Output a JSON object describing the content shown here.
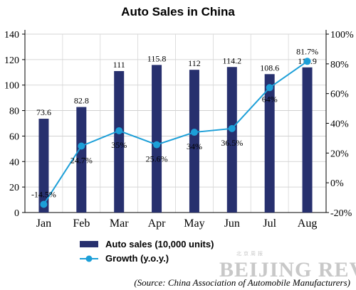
{
  "chart_data": {
    "type": "bar",
    "title": "Auto Sales in China",
    "categories": [
      "Jan",
      "Feb",
      "Mar",
      "Apr",
      "May",
      "Jun",
      "Jul",
      "Aug"
    ],
    "series": [
      {
        "name": "Auto sales (10,000 units)",
        "type": "bar",
        "axis": "left",
        "color": "#27306e",
        "values": [
          73.6,
          82.8,
          111,
          115.8,
          112,
          114.2,
          108.6,
          113.9
        ],
        "labels": [
          "73.6",
          "82.8",
          "111",
          "115.8",
          "112",
          "114.2",
          "108.6",
          "113.9"
        ]
      },
      {
        "name": "Growth (y.o.y.)",
        "type": "line",
        "axis": "right",
        "color": "#1c9fd8",
        "values": [
          -14.5,
          24.7,
          35,
          25.6,
          34,
          36.5,
          64,
          81.7
        ],
        "labels": [
          "-14.5%",
          "24.7%",
          "35%",
          "25.6%",
          "34%",
          "36.5%",
          "64%",
          "81.7%"
        ]
      }
    ],
    "y_left": {
      "min": 0,
      "max": 140,
      "ticks": [
        "0",
        "20",
        "40",
        "60",
        "80",
        "100",
        "120",
        "140"
      ]
    },
    "y_right": {
      "min": -20,
      "max": 100,
      "ticks": [
        "-20%",
        "0%",
        "20%",
        "40%",
        "60%",
        "80%",
        "100%"
      ]
    },
    "grid": true,
    "legend_position": "bottom"
  },
  "source": "(Source: China Association of Automobile Manufacturers)",
  "watermark": {
    "small": "北京周报",
    "large": "BEIJING REVIEW"
  }
}
